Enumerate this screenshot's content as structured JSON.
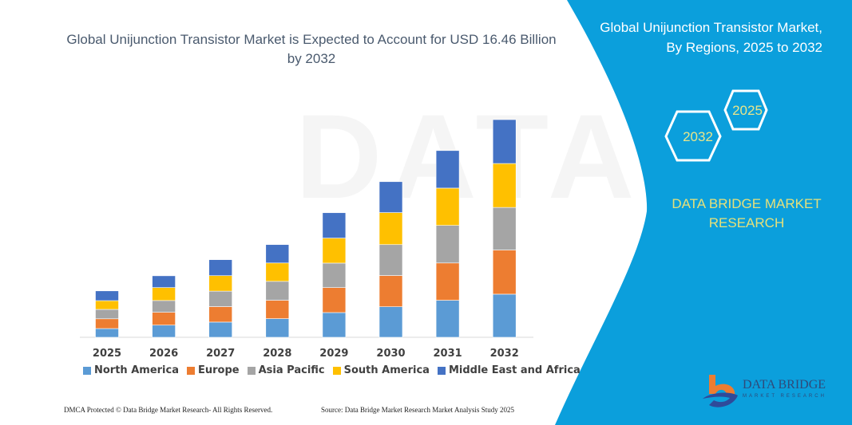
{
  "header": {
    "title": "Global Unijunction Transistor Market is Expected to Account for USD 16.46 Billion by 2032"
  },
  "side_panel": {
    "title_line1": "Global Unijunction Transistor Market,",
    "title_line2": "By Regions, 2025 to 2032",
    "hex_start": "2025",
    "hex_end": "2032",
    "brand_line1": "DATA BRIDGE MARKET",
    "brand_line2": "RESEARCH",
    "logo_text": "DATA BRIDGE",
    "logo_subtext": "MARKET RESEARCH",
    "panel_color": "#0b9fdc"
  },
  "footer": {
    "left": "DMCA Protected © Data Bridge Market Research-  All Rights Reserved.",
    "right": "Source: Data Bridge Market Research  Market Analysis Study 2025"
  },
  "chart_data": {
    "type": "bar",
    "stacked": true,
    "title": "Global Unijunction Transistor Market is Expected to Account for USD 16.46 Billion by 2032",
    "xlabel": "",
    "ylabel": "",
    "grid": false,
    "legend": "bottom",
    "categories": [
      "2025",
      "2026",
      "2027",
      "2028",
      "2029",
      "2030",
      "2031",
      "2032"
    ],
    "series": [
      {
        "name": "North America",
        "color": "#5b9bd5",
        "values": [
          0.66,
          0.92,
          1.15,
          1.41,
          1.87,
          2.31,
          2.8,
          3.26
        ]
      },
      {
        "name": "Europe",
        "color": "#ed7d31",
        "values": [
          0.74,
          0.97,
          1.17,
          1.39,
          1.89,
          2.36,
          2.82,
          3.34
        ]
      },
      {
        "name": "Asia Pacific",
        "color": "#a5a5a5",
        "values": [
          0.71,
          0.89,
          1.17,
          1.43,
          1.85,
          2.34,
          2.84,
          3.22
        ]
      },
      {
        "name": "South America",
        "color": "#ffc000",
        "values": [
          0.66,
          0.98,
          1.17,
          1.39,
          1.89,
          2.42,
          2.82,
          3.32
        ]
      },
      {
        "name": "Middle East and Africa",
        "color": "#4472c4",
        "values": [
          0.74,
          0.89,
          1.21,
          1.39,
          1.92,
          2.34,
          2.84,
          3.32
        ]
      }
    ]
  }
}
